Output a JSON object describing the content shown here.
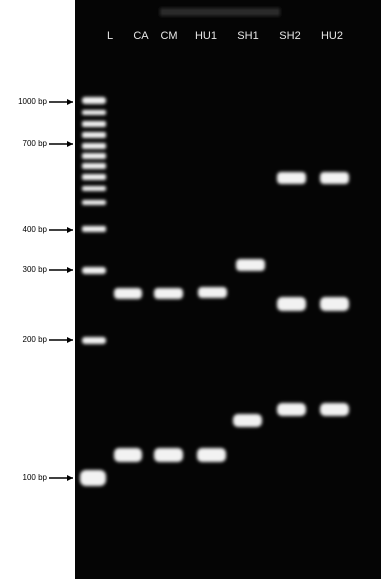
{
  "lanes": [
    "L",
    "CA",
    "CM",
    "HU1",
    "SH1",
    "SH2",
    "HU2"
  ],
  "markers": [
    "1000 bp",
    "700 bp",
    "400 bp",
    "300 bp",
    "200 bp",
    "100 bp"
  ]
}
